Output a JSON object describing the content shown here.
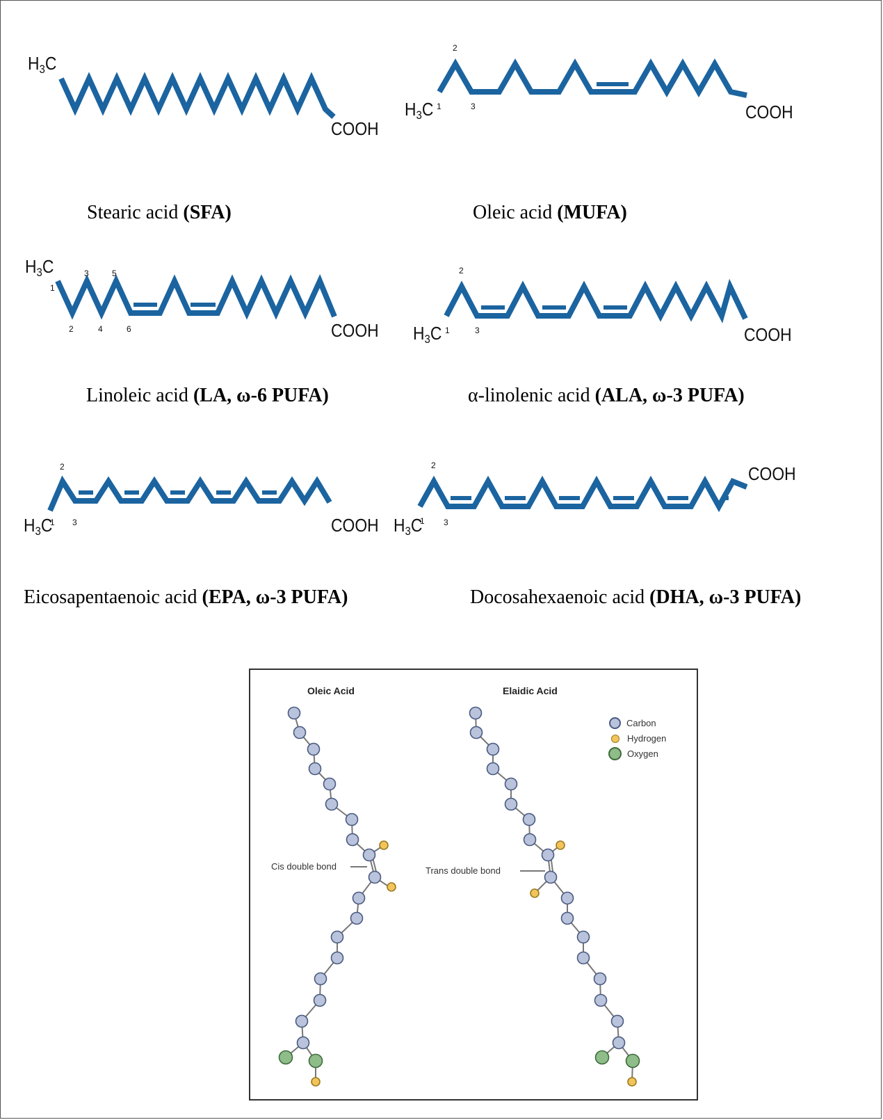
{
  "molecules": [
    {
      "id": "stearic",
      "caption_name": "Stearic acid ",
      "caption_bold": "(SFA)",
      "methyl": "H3C",
      "methyl_base": "H",
      "methyl_sub": "3",
      "methyl_tail": "C",
      "acid": "COOH",
      "numbers": []
    },
    {
      "id": "oleic",
      "caption_name": "Oleic acid ",
      "caption_bold": "(MUFA)",
      "methyl_base": "H",
      "methyl_sub": "3",
      "methyl_tail": "C",
      "acid": "COOH",
      "numbers": [
        "1",
        "2",
        "3"
      ]
    },
    {
      "id": "linoleic",
      "caption_name": "Linoleic acid ",
      "caption_bold": "(LA, ω-6 PUFA)",
      "methyl_base": "H",
      "methyl_sub": "3",
      "methyl_tail": "C",
      "acid": "COOH",
      "numbers": [
        "1",
        "2",
        "3",
        "4",
        "5",
        "6"
      ]
    },
    {
      "id": "alpha-linolenic",
      "caption_name": "α-linolenic acid ",
      "caption_bold": "(ALA, ω-3 PUFA)",
      "methyl_base": "H",
      "methyl_sub": "3",
      "methyl_tail": "C",
      "acid": "COOH",
      "numbers": [
        "1",
        "2",
        "3"
      ]
    },
    {
      "id": "epa",
      "caption_name": "Eicosapentaenoic acid ",
      "caption_bold": "(EPA, ω-3 PUFA)",
      "methyl_base": "H",
      "methyl_sub": "3",
      "methyl_tail": "C",
      "acid": "COOH",
      "numbers": [
        "1",
        "2",
        "3"
      ]
    },
    {
      "id": "dha",
      "caption_name": "Docosahexaenoic acid ",
      "caption_bold": "(DHA, ω-3 PUFA)",
      "methyl_base": "H",
      "methyl_sub": "3",
      "methyl_tail": "C",
      "acid": "COOH",
      "numbers": [
        "1",
        "2",
        "3"
      ]
    }
  ],
  "inset": {
    "left_title": "Oleic Acid",
    "right_title": "Elaidic Acid",
    "cis_label": "Cis double bond",
    "trans_label": "Trans double bond",
    "legend": [
      {
        "label": "Carbon",
        "color": "#b9c3dc"
      },
      {
        "label": "Hydrogen",
        "color": "#f2c45a"
      },
      {
        "label": "Oxygen",
        "color": "#8fbd8a"
      }
    ]
  },
  "colors": {
    "chain": "#1b64a0",
    "carbon": "#b9c3dc",
    "hydrogen": "#f2c45a",
    "oxygen": "#8fbd8a"
  }
}
